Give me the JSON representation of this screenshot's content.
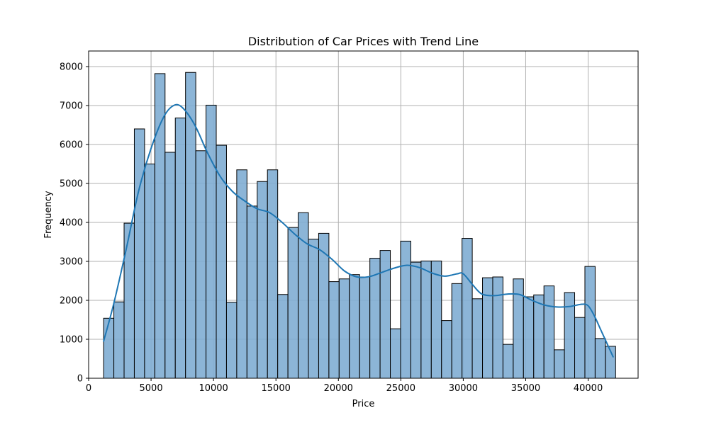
{
  "chart_data": {
    "type": "bar",
    "title": "Distribution of Car Prices with Trend Line",
    "xlabel": "Price",
    "ylabel": "Frequency",
    "xlim": [
      0,
      44000
    ],
    "ylim": [
      0,
      8400
    ],
    "x_ticks": [
      0,
      5000,
      10000,
      15000,
      20000,
      25000,
      30000,
      35000,
      40000
    ],
    "y_ticks": [
      0,
      1000,
      2000,
      3000,
      4000,
      5000,
      6000,
      7000,
      8000
    ],
    "grid": true,
    "bin_edges": [
      1200,
      2020,
      2840,
      3660,
      4480,
      5300,
      6120,
      6940,
      7760,
      8580,
      9400,
      10220,
      11040,
      11860,
      12680,
      13500,
      14320,
      15140,
      15960,
      16780,
      17600,
      18420,
      19240,
      20060,
      20880,
      21700,
      22520,
      23340,
      24160,
      24980,
      25800,
      26620,
      27440,
      28260,
      29080,
      29900,
      30720,
      31540,
      32360,
      33180,
      34000,
      34820,
      35640,
      36460,
      37280,
      38100,
      38920,
      39740,
      40560,
      41380,
      42200
    ],
    "values": [
      1540,
      1960,
      3980,
      6400,
      5500,
      7820,
      5800,
      6680,
      7850,
      5840,
      7010,
      5980,
      1950,
      5350,
      4420,
      5050,
      5350,
      2150,
      3870,
      4250,
      3570,
      3720,
      2480,
      2550,
      2660,
      2600,
      3080,
      3280,
      1270,
      3520,
      2980,
      3010,
      3010,
      1480,
      2430,
      3590,
      2040,
      2580,
      2600,
      870,
      2550,
      2090,
      2140,
      2370,
      730,
      2200,
      1560,
      2870,
      1020,
      820
    ],
    "trend_line": {
      "x": [
        1200,
        2000,
        3000,
        4000,
        5000,
        6000,
        6800,
        7500,
        8500,
        9500,
        10500,
        11500,
        12500,
        13500,
        14500,
        15500,
        16500,
        17500,
        18500,
        19500,
        20500,
        21500,
        22500,
        23500,
        24500,
        25500,
        26500,
        27500,
        28500,
        29500,
        30000,
        30800,
        31500,
        32500,
        33500,
        34500,
        35500,
        36500,
        37500,
        38500,
        39500,
        40000,
        40500,
        41000,
        41500,
        42000
      ],
      "y": [
        950,
        1900,
        3300,
        4800,
        5900,
        6700,
        7000,
        6950,
        6500,
        5800,
        5200,
        4800,
        4550,
        4350,
        4250,
        4000,
        3700,
        3450,
        3300,
        3050,
        2750,
        2600,
        2610,
        2720,
        2830,
        2900,
        2840,
        2700,
        2620,
        2680,
        2680,
        2380,
        2160,
        2120,
        2160,
        2150,
        2000,
        1880,
        1830,
        1840,
        1900,
        1860,
        1600,
        1250,
        900,
        550
      ]
    },
    "colors": {
      "bar_fill": "#7fadd3",
      "bar_edge": "#000000",
      "line": "#1f77b4",
      "grid": "#b0b0b0"
    }
  }
}
